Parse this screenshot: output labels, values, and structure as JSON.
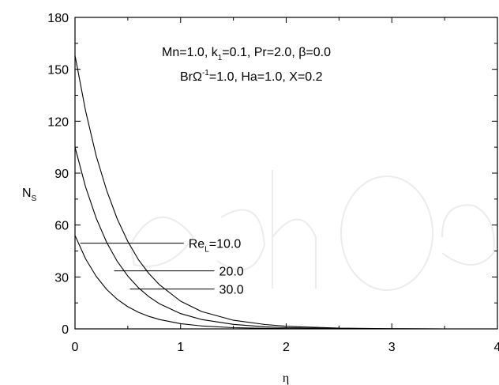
{
  "chart_data": {
    "type": "line",
    "title": "",
    "xlabel": "η",
    "ylabel_main": "N",
    "ylabel_sub": "S",
    "xlim": [
      0,
      4
    ],
    "ylim": [
      0,
      180
    ],
    "xticks": [
      0,
      1,
      2,
      3,
      4
    ],
    "yticks": [
      0,
      30,
      60,
      90,
      120,
      150,
      180
    ],
    "grid": false,
    "series": [
      {
        "name": "Re_L=10.0",
        "x": [
          0,
          0.1,
          0.2,
          0.3,
          0.4,
          0.5,
          0.6,
          0.7,
          0.8,
          1.0,
          1.2,
          1.5,
          1.8,
          2.0,
          2.5,
          3.0,
          3.5,
          4.0
        ],
        "y": [
          54,
          40.5,
          30.4,
          22.8,
          17.1,
          12.8,
          9.6,
          7.2,
          5.4,
          3.0,
          1.7,
          0.7,
          0.3,
          0.15,
          0.04,
          0.01,
          0,
          0
        ]
      },
      {
        "name": "20.0",
        "x": [
          0,
          0.1,
          0.2,
          0.3,
          0.4,
          0.5,
          0.6,
          0.7,
          0.8,
          1.0,
          1.2,
          1.5,
          1.8,
          2.0,
          2.5,
          3.0,
          3.5,
          4.0
        ],
        "y": [
          105,
          82,
          64,
          50,
          39,
          30.5,
          23.8,
          18.6,
          14.5,
          8.8,
          5.4,
          2.6,
          1.2,
          0.7,
          0.2,
          0.05,
          0.01,
          0
        ]
      },
      {
        "name": "30.0",
        "x": [
          0,
          0.1,
          0.2,
          0.3,
          0.4,
          0.5,
          0.6,
          0.7,
          0.8,
          1.0,
          1.2,
          1.5,
          1.8,
          2.0,
          2.5,
          3.0,
          3.5,
          4.0
        ],
        "y": [
          158,
          126,
          100,
          80,
          63.5,
          50.5,
          40,
          32,
          25.5,
          16,
          10,
          5,
          2.5,
          1.5,
          0.4,
          0.1,
          0.02,
          0
        ]
      }
    ],
    "annotations": {
      "param_line1": {
        "p1": "Mn=1.0, k",
        "p1_sub": "1",
        "p2": "=0.1, Pr=2.0, β=0.0"
      },
      "param_line2": {
        "p1": "BrΩ",
        "p1_sup": "-1",
        "p2": "=1.0, Ha=1.0, X=0.2"
      },
      "series_labels": [
        {
          "text": "Re",
          "sub": "L",
          "text2": "=10.0",
          "at_x": 0.05,
          "at_y": 49.5,
          "label_x": 1.03,
          "label_y": 49.5
        },
        {
          "text": "20.0",
          "sub": "",
          "text2": "",
          "at_x": 0.37,
          "at_y": 33.5,
          "label_x": 1.32,
          "label_y": 33.5
        },
        {
          "text": "30.0",
          "sub": "",
          "text2": "",
          "at_x": 0.52,
          "at_y": 23,
          "label_x": 1.32,
          "label_y": 23
        }
      ]
    }
  }
}
